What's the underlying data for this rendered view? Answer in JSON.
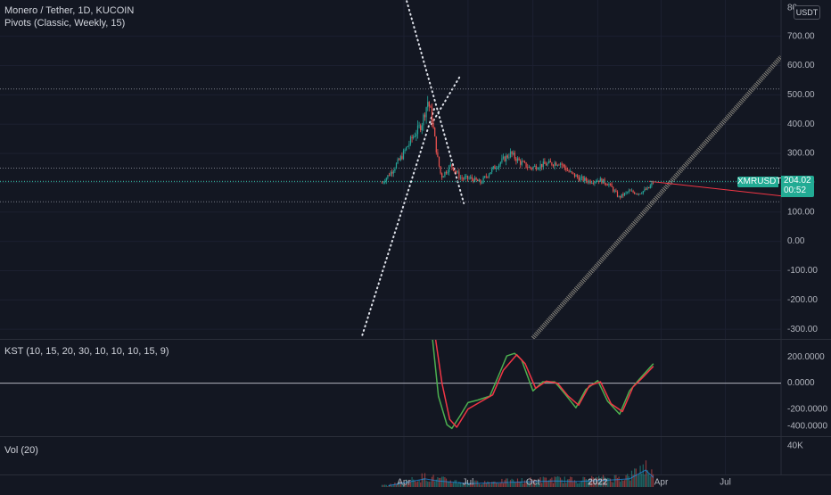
{
  "header": {
    "symbol_line": "Monero / Tether, 1D, KUCOIN",
    "pivots_line": "Pivots (Classic, Weekly, 15)",
    "unit_badge": "USDT",
    "top_cut_label": "80"
  },
  "price_axis": {
    "labels": [
      "700.00",
      "600.00",
      "500.00",
      "400.00",
      "300.00",
      "200.00",
      "100.00",
      "0.00",
      "-100.00",
      "-200.00",
      "-300.00"
    ]
  },
  "last_price": {
    "symbol": "XMRUSDT",
    "value": "204.02",
    "countdown": "00:52"
  },
  "kst_pane": {
    "legend": "KST (10, 15, 20, 30, 10, 10, 10, 15, 9)",
    "labels": [
      "200.0000",
      "0.0000",
      "-200.0000",
      "-400.0000"
    ]
  },
  "vol_pane": {
    "legend": "Vol (20)",
    "labels": [
      "40K"
    ]
  },
  "time_axis": {
    "labels": [
      "Apr",
      "Jul",
      "Oct",
      "2022",
      "Apr",
      "Jul"
    ]
  },
  "colors": {
    "background": "#131722",
    "up": "#26a69a",
    "down": "#ef5350",
    "kst_line": "#4caf50",
    "kst_signal": "#f23645",
    "accent": "#22ab94"
  },
  "chart_data": [
    {
      "type": "candlestick",
      "title": "Monero / Tether, 1D, KUCOIN",
      "ylim": [
        -320,
        800
      ],
      "last": 204.02,
      "pivot_levels": [
        520,
        250,
        205,
        135
      ],
      "points": [
        {
          "t": "2021-03-01",
          "c": 200
        },
        {
          "t": "2021-03-15",
          "c": 240
        },
        {
          "t": "2021-03-29",
          "c": 290
        },
        {
          "t": "2021-04-12",
          "c": 350
        },
        {
          "t": "2021-04-26",
          "c": 400
        },
        {
          "t": "2021-05-05",
          "c": 480
        },
        {
          "t": "2021-05-10",
          "c": 430
        },
        {
          "t": "2021-05-19",
          "c": 280
        },
        {
          "t": "2021-05-24",
          "c": 220
        },
        {
          "t": "2021-06-07",
          "c": 260
        },
        {
          "t": "2021-06-21",
          "c": 215
        },
        {
          "t": "2021-07-05",
          "c": 215
        },
        {
          "t": "2021-07-19",
          "c": 200
        },
        {
          "t": "2021-08-02",
          "c": 240
        },
        {
          "t": "2021-08-16",
          "c": 270
        },
        {
          "t": "2021-08-30",
          "c": 300
        },
        {
          "t": "2021-09-13",
          "c": 270
        },
        {
          "t": "2021-09-27",
          "c": 250
        },
        {
          "t": "2021-10-11",
          "c": 260
        },
        {
          "t": "2021-10-25",
          "c": 265
        },
        {
          "t": "2021-11-08",
          "c": 270
        },
        {
          "t": "2021-11-22",
          "c": 235
        },
        {
          "t": "2021-12-06",
          "c": 215
        },
        {
          "t": "2021-12-20",
          "c": 205
        },
        {
          "t": "2022-01-03",
          "c": 210
        },
        {
          "t": "2022-01-17",
          "c": 195
        },
        {
          "t": "2022-01-31",
          "c": 150
        },
        {
          "t": "2022-02-14",
          "c": 170
        },
        {
          "t": "2022-02-28",
          "c": 165
        },
        {
          "t": "2022-03-14",
          "c": 180
        },
        {
          "t": "2022-03-21",
          "c": 204.02
        }
      ]
    },
    {
      "type": "line",
      "title": "KST (10, 15, 20, 30, 10, 10, 10, 15, 9)",
      "ylim": [
        -400,
        300
      ],
      "series": [
        {
          "values": [
            {
              "t": "2021-05-01",
              "v": 900
            },
            {
              "t": "2021-05-20",
              "v": -100
            },
            {
              "t": "2021-06-01",
              "v": -320
            },
            {
              "t": "2021-06-08",
              "v": -350
            },
            {
              "t": "2021-06-20",
              "v": -250
            },
            {
              "t": "2021-07-01",
              "v": -150
            },
            {
              "t": "2021-07-15",
              "v": -130
            },
            {
              "t": "2021-08-01",
              "v": -100
            },
            {
              "t": "2021-08-15",
              "v": 80
            },
            {
              "t": "2021-08-25",
              "v": 210
            },
            {
              "t": "2021-09-05",
              "v": 230
            },
            {
              "t": "2021-09-15",
              "v": 180
            },
            {
              "t": "2021-10-01",
              "v": -60
            },
            {
              "t": "2021-10-15",
              "v": 10
            },
            {
              "t": "2021-11-01",
              "v": 10
            },
            {
              "t": "2021-11-15",
              "v": -80
            },
            {
              "t": "2021-12-01",
              "v": -190
            },
            {
              "t": "2021-12-15",
              "v": -50
            },
            {
              "t": "2022-01-01",
              "v": 20
            },
            {
              "t": "2022-01-15",
              "v": -140
            },
            {
              "t": "2022-02-01",
              "v": -240
            },
            {
              "t": "2022-02-15",
              "v": -60
            },
            {
              "t": "2022-03-01",
              "v": 30
            },
            {
              "t": "2022-03-21",
              "v": 150
            }
          ]
        },
        {
          "values": [
            {
              "t": "2021-05-01",
              "v": 900
            },
            {
              "t": "2021-05-25",
              "v": 0
            },
            {
              "t": "2021-06-05",
              "v": -280
            },
            {
              "t": "2021-06-15",
              "v": -340
            },
            {
              "t": "2021-07-01",
              "v": -200
            },
            {
              "t": "2021-07-20",
              "v": -140
            },
            {
              "t": "2021-08-05",
              "v": -90
            },
            {
              "t": "2021-08-20",
              "v": 100
            },
            {
              "t": "2021-09-08",
              "v": 220
            },
            {
              "t": "2021-09-20",
              "v": 150
            },
            {
              "t": "2021-10-05",
              "v": -40
            },
            {
              "t": "2021-10-20",
              "v": 15
            },
            {
              "t": "2021-11-05",
              "v": 0
            },
            {
              "t": "2021-11-20",
              "v": -100
            },
            {
              "t": "2021-12-05",
              "v": -170
            },
            {
              "t": "2021-12-20",
              "v": -20
            },
            {
              "t": "2022-01-05",
              "v": 10
            },
            {
              "t": "2022-01-20",
              "v": -160
            },
            {
              "t": "2022-02-05",
              "v": -220
            },
            {
              "t": "2022-02-20",
              "v": -30
            },
            {
              "t": "2022-03-05",
              "v": 40
            },
            {
              "t": "2022-03-21",
              "v": 130
            }
          ]
        }
      ]
    },
    {
      "type": "bar",
      "title": "Vol (20)",
      "ylim": [
        0,
        45000
      ],
      "points": [
        {
          "t": "2021-03-10",
          "v": 2000
        },
        {
          "t": "2021-04-01",
          "v": 6000
        },
        {
          "t": "2021-05-01",
          "v": 12000
        },
        {
          "t": "2021-05-20",
          "v": 9000
        },
        {
          "t": "2021-07-01",
          "v": 5000
        },
        {
          "t": "2021-09-01",
          "v": 7000
        },
        {
          "t": "2021-11-01",
          "v": 9000
        },
        {
          "t": "2021-12-01",
          "v": 8000
        },
        {
          "t": "2022-01-15",
          "v": 10000
        },
        {
          "t": "2022-02-15",
          "v": 12000
        },
        {
          "t": "2022-03-10",
          "v": 25000
        },
        {
          "t": "2022-03-21",
          "v": 14000
        }
      ]
    }
  ]
}
